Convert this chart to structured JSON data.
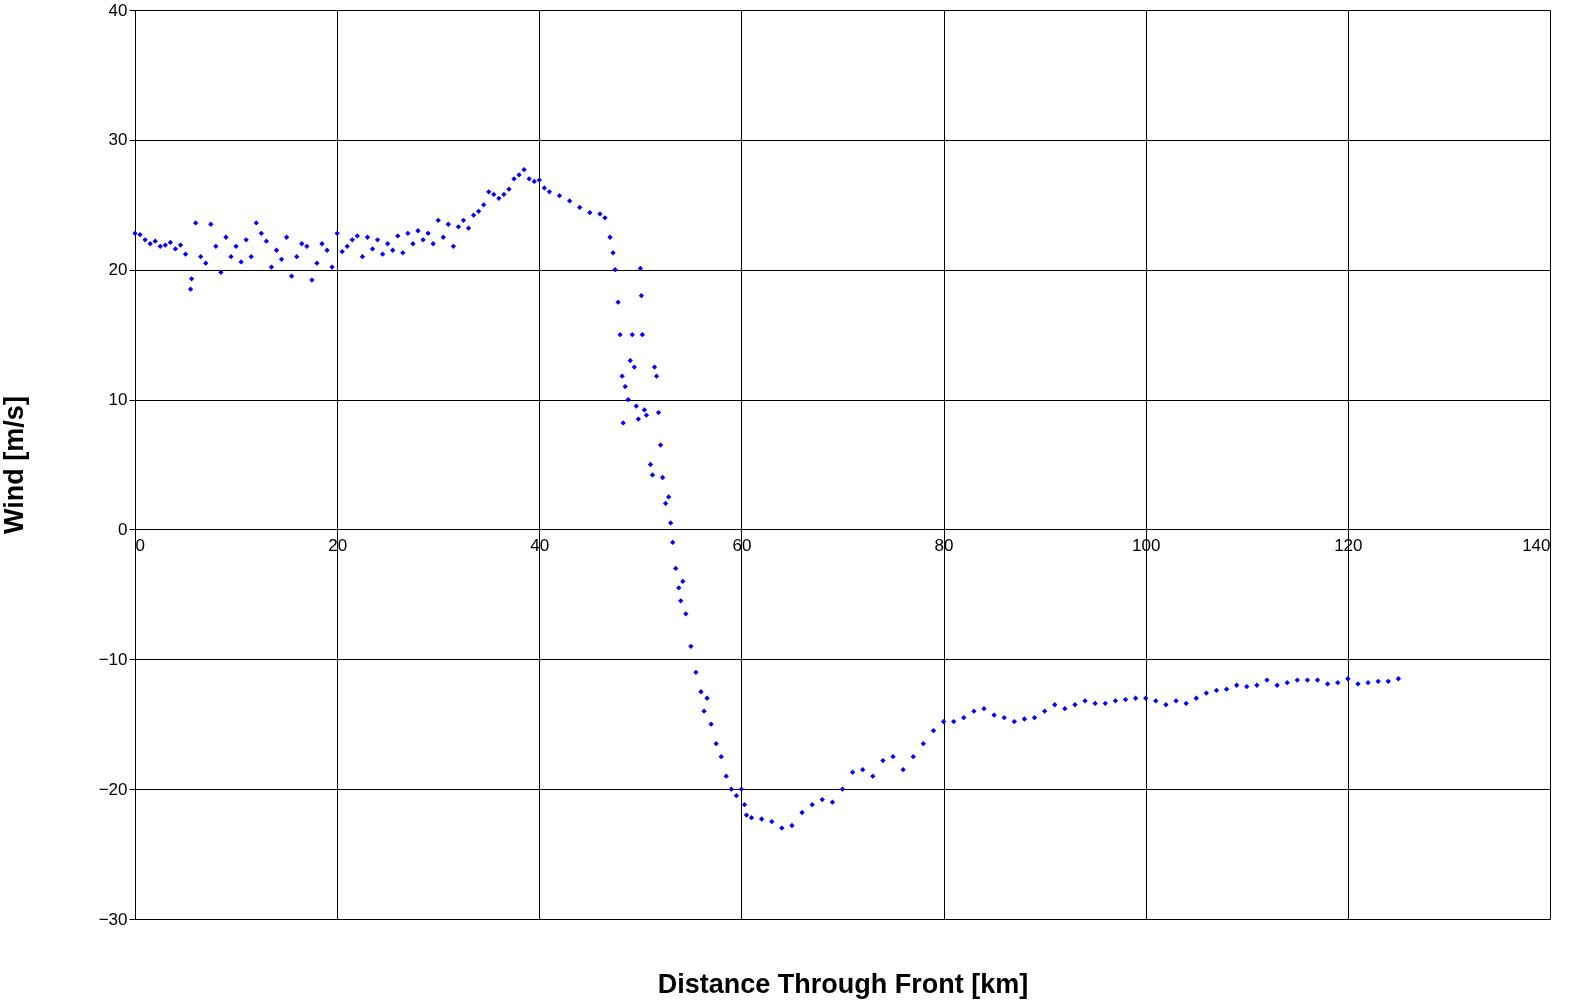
{
  "chart_data": {
    "type": "scatter",
    "xlabel": "Distance Through Front [km]",
    "ylabel": "Wind [m/s]",
    "xlim": [
      0,
      140
    ],
    "xticks": [
      0,
      20,
      40,
      60,
      80,
      100,
      120,
      140
    ],
    "ylim": [
      -30,
      40
    ],
    "yticks": [
      -30,
      -20,
      -10,
      0,
      10,
      20,
      30,
      40
    ],
    "grid": true,
    "marker": "diamond",
    "series": [
      {
        "color": "#0000ff",
        "x": [
          0,
          0.5,
          1,
          1.5,
          2,
          2.5,
          3,
          3.5,
          4,
          4.5,
          5,
          5.5,
          5.6,
          6,
          6.5,
          7,
          7.5,
          8,
          8.5,
          9,
          9.5,
          10,
          10.5,
          11,
          11.5,
          12,
          12.5,
          13,
          13.5,
          14,
          14.5,
          15,
          15.5,
          16,
          16.5,
          17,
          17.5,
          18,
          18.5,
          19,
          19.5,
          20,
          20.5,
          21,
          21.5,
          22,
          22.5,
          23,
          23.5,
          24,
          24.5,
          25,
          25.5,
          26,
          26.5,
          27,
          27.5,
          28,
          28.5,
          29,
          29.5,
          30,
          30.5,
          31,
          31.5,
          32,
          32.5,
          33,
          33.5,
          34,
          34.5,
          35,
          35.5,
          36,
          36.5,
          37,
          37.5,
          38,
          38.5,
          39,
          39.5,
          40,
          40.5,
          41,
          42,
          43,
          44,
          45,
          46,
          46.5,
          47,
          47.3,
          47.5,
          47.8,
          48,
          48.2,
          48.5,
          48.3,
          48.8,
          49,
          49.2,
          49.4,
          49.6,
          49.8,
          50,
          50.1,
          50.2,
          50.4,
          50.6,
          51,
          51.2,
          51.4,
          51.6,
          51.8,
          52,
          52.2,
          52.5,
          52.8,
          53,
          53.2,
          53.5,
          53.8,
          54,
          54.2,
          54.5,
          55,
          55.5,
          56,
          56.3,
          56.6,
          57,
          57.5,
          58,
          58.5,
          59,
          59.5,
          60,
          60.3,
          60.5,
          61,
          62,
          63,
          64,
          65,
          66,
          67,
          68,
          69,
          70,
          71,
          72,
          73,
          74,
          75,
          76,
          77,
          78,
          79,
          80,
          81,
          82,
          83,
          84,
          85,
          86,
          87,
          88,
          89,
          90,
          91,
          92,
          93,
          94,
          95,
          96,
          97,
          98,
          99,
          100,
          101,
          102,
          103,
          104,
          105,
          106,
          107,
          108,
          109,
          110,
          111,
          112,
          113,
          114,
          115,
          116,
          117,
          118,
          119,
          120,
          121,
          122,
          123,
          124,
          125
        ],
        "values": [
          22.8,
          22.7,
          22.3,
          22.0,
          22.2,
          21.8,
          21.9,
          22.1,
          21.6,
          21.9,
          21.2,
          18.5,
          19.3,
          23.6,
          21.0,
          20.5,
          23.5,
          21.8,
          19.8,
          22.5,
          21.0,
          21.8,
          20.6,
          22.3,
          21.0,
          23.6,
          22.8,
          22.2,
          20.2,
          21.5,
          20.8,
          22.5,
          19.5,
          21.0,
          22.0,
          21.8,
          19.2,
          20.5,
          22.0,
          21.5,
          20.2,
          22.8,
          21.4,
          21.8,
          22.3,
          22.6,
          21.0,
          22.5,
          21.6,
          22.3,
          21.2,
          22.0,
          21.5,
          22.6,
          21.3,
          22.8,
          22.0,
          23.0,
          22.3,
          22.8,
          22.0,
          23.8,
          22.5,
          23.5,
          21.8,
          23.3,
          23.8,
          23.2,
          24.2,
          24.5,
          25.0,
          26.0,
          25.8,
          25.5,
          25.8,
          26.2,
          27.0,
          27.3,
          27.7,
          27.0,
          26.8,
          26.9,
          26.3,
          26.0,
          25.7,
          25.3,
          24.8,
          24.4,
          24.3,
          24.0,
          22.5,
          21.3,
          20.0,
          17.5,
          15.0,
          11.8,
          11.0,
          8.2,
          10.0,
          13.0,
          15.0,
          12.5,
          9.5,
          8.5,
          20.1,
          18.0,
          15.0,
          9.2,
          8.8,
          5.0,
          4.2,
          12.5,
          11.8,
          9.0,
          6.5,
          4.0,
          2.0,
          2.5,
          0.5,
          -1.0,
          -3.0,
          -4.5,
          -5.5,
          -4.0,
          -6.5,
          -9.0,
          -11.0,
          -12.5,
          -14.0,
          -13.0,
          -15.0,
          -16.5,
          -17.5,
          -19.0,
          -20.0,
          -20.5,
          -20.0,
          -21.2,
          -22.0,
          -22.2,
          -22.3,
          -22.5,
          -23.0,
          -22.8,
          -21.8,
          -21.2,
          -20.8,
          -21.0,
          -20.0,
          -18.7,
          -18.5,
          -19.0,
          -17.8,
          -17.5,
          -18.5,
          -17.5,
          -16.5,
          -15.5,
          -14.8,
          -14.8,
          -14.5,
          -14.0,
          -13.8,
          -14.3,
          -14.5,
          -14.8,
          -14.6,
          -14.5,
          -14.0,
          -13.5,
          -13.8,
          -13.5,
          -13.2,
          -13.4,
          -13.4,
          -13.2,
          -13.1,
          -13.0,
          -13.0,
          -13.2,
          -13.5,
          -13.2,
          -13.4,
          -13.0,
          -12.6,
          -12.4,
          -12.3,
          -12.0,
          -12.1,
          -12.0,
          -11.6,
          -12.0,
          -11.8,
          -11.6,
          -11.6,
          -11.6,
          -11.9,
          -11.8,
          -11.5,
          -11.9,
          -11.8,
          -11.7,
          -11.7,
          -11.5
        ]
      }
    ]
  }
}
